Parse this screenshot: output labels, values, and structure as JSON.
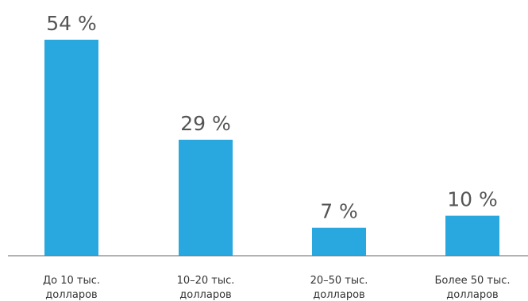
{
  "chart_data": {
    "type": "bar",
    "categories": [
      [
        "До 10 тыс.",
        "долларов"
      ],
      [
        "10–20 тыс.",
        "долларов"
      ],
      [
        "20–50 тыс.",
        "долларов"
      ],
      [
        "Более 50 тыс.",
        "долларов"
      ]
    ],
    "values": [
      54,
      29,
      7,
      10
    ],
    "value_labels": [
      "54 %",
      "29 %",
      "7 %",
      "10 %"
    ],
    "title": "",
    "xlabel": "",
    "ylabel": "",
    "ylim": [
      0,
      54
    ],
    "grid": false,
    "bar_color": "#29a8e0",
    "axis_color": "#666666"
  }
}
